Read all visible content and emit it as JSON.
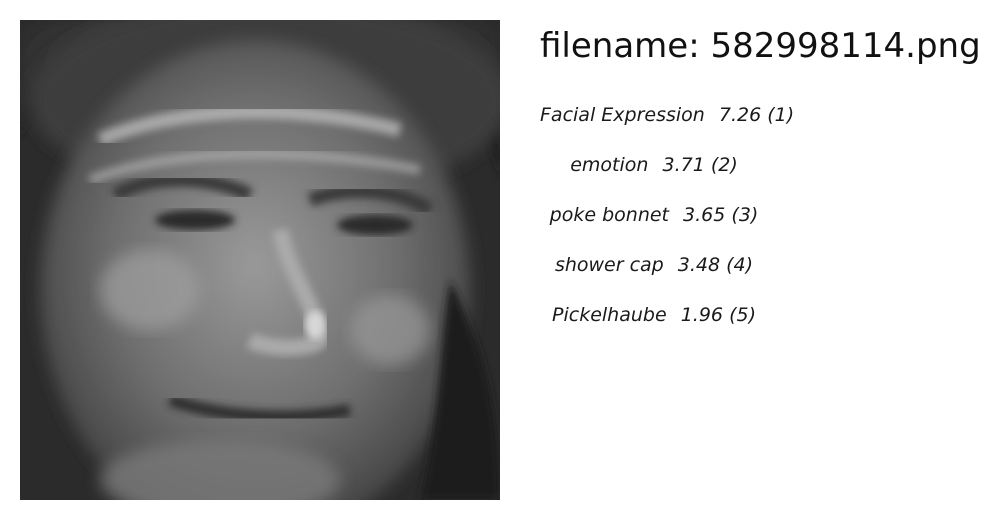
{
  "header": {
    "filename_text": "filename: 582998114.png"
  },
  "image": {
    "icon": "grayscale-portrait-photo",
    "style": "grayscale"
  },
  "predictions": [
    {
      "label": "Facial Expression",
      "score": "7.26",
      "rank": "(1)"
    },
    {
      "label": "emotion",
      "score": "3.71",
      "rank": "(2)"
    },
    {
      "label": "poke bonnet",
      "score": "3.65",
      "rank": "(3)"
    },
    {
      "label": "shower cap",
      "score": "3.48",
      "rank": "(4)"
    },
    {
      "label": "Pickelhaube",
      "score": "1.96",
      "rank": "(5)"
    }
  ]
}
